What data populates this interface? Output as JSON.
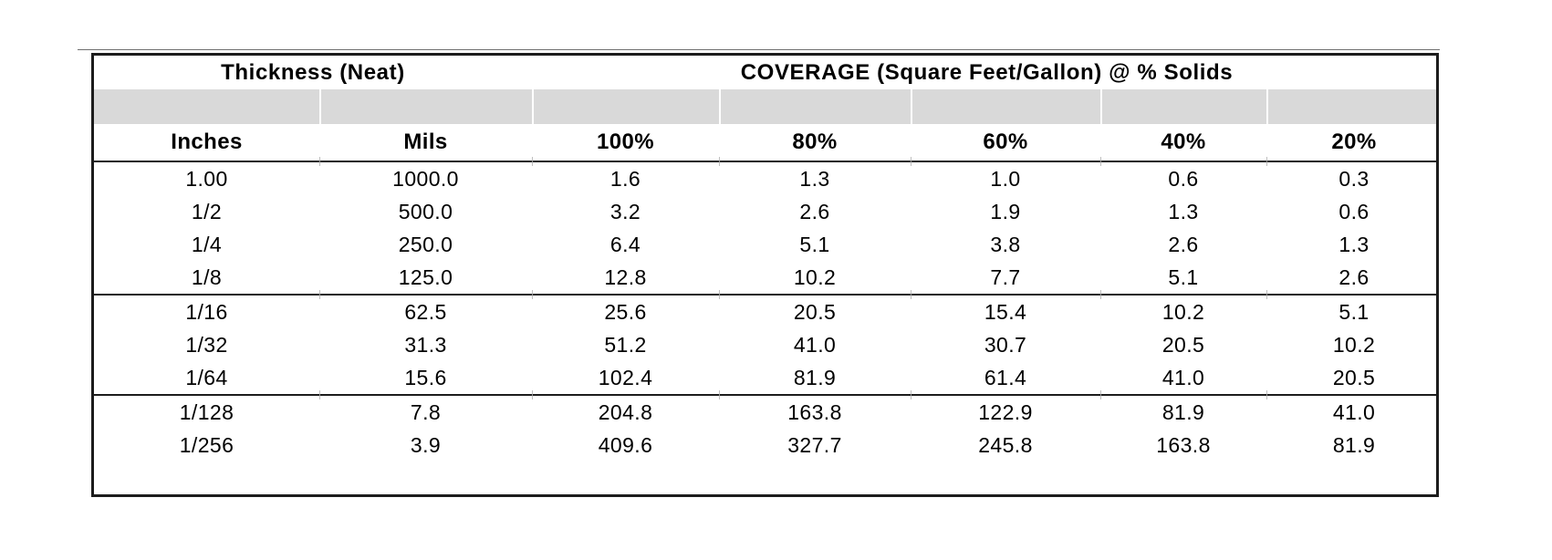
{
  "table": {
    "title_left": "Thickness (Neat)",
    "title_right": "COVERAGE (Square Feet/Gallon) @ % Solids",
    "columns": [
      "Inches",
      "Mils",
      "100%",
      "80%",
      "60%",
      "40%",
      "20%"
    ],
    "groups": [
      {
        "rows": [
          [
            "1.00",
            "1000.0",
            "1.6",
            "1.3",
            "1.0",
            "0.6",
            "0.3"
          ],
          [
            "1/2",
            "500.0",
            "3.2",
            "2.6",
            "1.9",
            "1.3",
            "0.6"
          ],
          [
            "1/4",
            "250.0",
            "6.4",
            "5.1",
            "3.8",
            "2.6",
            "1.3"
          ],
          [
            "1/8",
            "125.0",
            "12.8",
            "10.2",
            "7.7",
            "5.1",
            "2.6"
          ]
        ]
      },
      {
        "rows": [
          [
            "1/16",
            "62.5",
            "25.6",
            "20.5",
            "15.4",
            "10.2",
            "5.1"
          ],
          [
            "1/32",
            "31.3",
            "51.2",
            "41.0",
            "30.7",
            "20.5",
            "10.2"
          ],
          [
            "1/64",
            "15.6",
            "102.4",
            "81.9",
            "61.4",
            "41.0",
            "20.5"
          ]
        ]
      },
      {
        "rows": [
          [
            "1/128",
            "7.8",
            "204.8",
            "163.8",
            "122.9",
            "81.9",
            "41.0"
          ],
          [
            "1/256",
            "3.9",
            "409.6",
            "327.7",
            "245.8",
            "163.8",
            "81.9"
          ]
        ]
      }
    ],
    "colors": {
      "band": "#d9d9d9",
      "border": "#1c1c1c",
      "text": "#000000"
    }
  }
}
